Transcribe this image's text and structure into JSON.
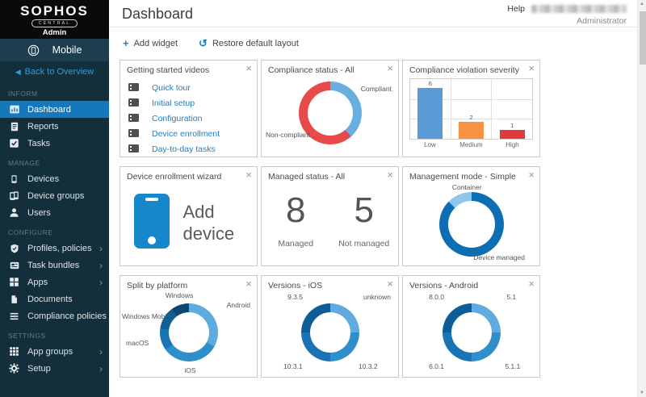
{
  "sidebar": {
    "logo": {
      "brand": "SOPHOS",
      "pill": "CENTRAL",
      "product": "Admin"
    },
    "context": {
      "label": "Mobile"
    },
    "back": {
      "label": "Back to Overview"
    },
    "sections": [
      {
        "label": "INFORM",
        "items": [
          {
            "label": "Dashboard"
          },
          {
            "label": "Reports"
          },
          {
            "label": "Tasks"
          }
        ]
      },
      {
        "label": "MANAGE",
        "items": [
          {
            "label": "Devices"
          },
          {
            "label": "Device groups"
          },
          {
            "label": "Users"
          }
        ]
      },
      {
        "label": "CONFIGURE",
        "items": [
          {
            "label": "Profiles, policies"
          },
          {
            "label": "Task bundles"
          },
          {
            "label": "Apps"
          },
          {
            "label": "Documents"
          },
          {
            "label": "Compliance policies"
          }
        ]
      },
      {
        "label": "SETTINGS",
        "items": [
          {
            "label": "App groups"
          },
          {
            "label": "Setup"
          }
        ]
      }
    ]
  },
  "header": {
    "title": "Dashboard",
    "help": "Help",
    "user_role": "Administrator"
  },
  "toolbar": {
    "add_widget": "Add widget",
    "restore": "Restore default layout"
  },
  "widgets": {
    "getting_started": {
      "title": "Getting started videos",
      "links": [
        "Quick tour",
        "Initial setup",
        "Configuration",
        "Device enrollment",
        "Day-to-day tasks"
      ]
    },
    "compliance_status": {
      "title": "Compliance status - All",
      "type": "donut",
      "segments": [
        {
          "label": "Compliant",
          "color": "#66AFDF",
          "pct": 38.5
        },
        {
          "label": "Non-compliant",
          "color": "#E8494B",
          "pct": 61.5
        }
      ]
    },
    "violation_severity": {
      "title": "Compliance violation severity",
      "type": "bar",
      "categories": [
        "Low",
        "Medium",
        "High"
      ],
      "values": [
        6,
        2,
        1
      ],
      "colors": [
        "#5B9BD5",
        "#F89343",
        "#E0393E"
      ],
      "ymax": 7
    },
    "enrollment_wizard": {
      "title": "Device enrollment wizard",
      "action_label": "Add device"
    },
    "managed_status": {
      "title": "Managed status - All",
      "stats": [
        {
          "value": "8",
          "label": "Managed"
        },
        {
          "value": "5",
          "label": "Not managed"
        }
      ]
    },
    "management_mode": {
      "title": "Management mode - Simple",
      "type": "donut",
      "segments": [
        {
          "label": "Device managed",
          "color": "#0D6EB3",
          "pct": 87.5
        },
        {
          "label": "Container",
          "color": "#8FC6EA",
          "pct": 12.5
        }
      ]
    },
    "split_platform": {
      "title": "Split by platform",
      "type": "donut",
      "segments": [
        {
          "label": "Android",
          "color": "#5FABE0",
          "pct": 33
        },
        {
          "label": "iOS",
          "color": "#2E8FCB",
          "pct": 32
        },
        {
          "label": "macOS",
          "color": "#1A74B4",
          "pct": 12
        },
        {
          "label": "Windows Mobile",
          "color": "#115E95",
          "pct": 13
        },
        {
          "label": "Windows",
          "color": "#0A4672",
          "pct": 10
        }
      ]
    },
    "versions_ios": {
      "title": "Versions - iOS",
      "type": "donut",
      "segments": [
        {
          "label": "unknown",
          "color": "#5FABE0",
          "pct": 25
        },
        {
          "label": "10.3.2",
          "color": "#2E8FCB",
          "pct": 25
        },
        {
          "label": "10.3.1",
          "color": "#1A74B4",
          "pct": 25
        },
        {
          "label": "9.3.5",
          "color": "#0D5E98",
          "pct": 25
        }
      ]
    },
    "versions_android": {
      "title": "Versions - Android",
      "type": "donut",
      "segments": [
        {
          "label": "5.1",
          "color": "#5FABE0",
          "pct": 25
        },
        {
          "label": "5.1.1",
          "color": "#2E8FCB",
          "pct": 25
        },
        {
          "label": "6.0.1",
          "color": "#1A74B4",
          "pct": 25
        },
        {
          "label": "8.0.0",
          "color": "#0D5E98",
          "pct": 25
        }
      ]
    }
  }
}
